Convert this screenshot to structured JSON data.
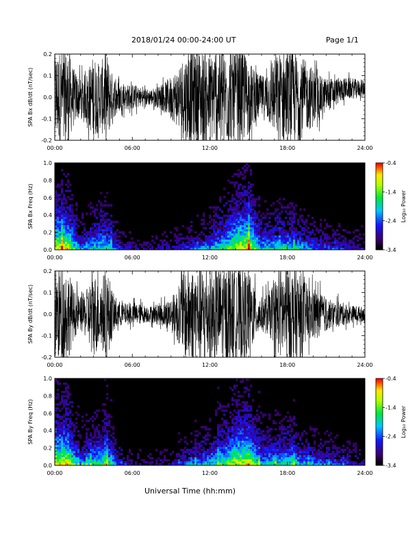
{
  "header": {
    "title": "2018/01/24  00:00-24:00 UT",
    "page": "Page 1/1"
  },
  "x_caption": "Universal Time (hh:mm)",
  "colorbar": {
    "label": "Log₁₀ Power",
    "ticks": [
      "-0.4",
      "-1.4",
      "-2.4",
      "-3.4"
    ],
    "range": [
      -3.4,
      -0.4
    ]
  },
  "chart_data": [
    {
      "type": "line",
      "ylabel": "SPA Bx dB/dt (nT/sec)",
      "xlim": [
        0,
        24
      ],
      "ylim": [
        -0.2,
        0.2
      ],
      "xticks": [
        "00:00",
        "06:00",
        "12:00",
        "18:00",
        "24:00"
      ],
      "yticks": [
        "-0.2",
        "-0.1",
        "0.0",
        "0.1",
        "0.2"
      ],
      "envelope": {
        "hours": [
          0,
          0.5,
          1,
          1.5,
          2,
          2.5,
          3,
          3.5,
          4,
          4.5,
          5,
          5.5,
          6,
          6.5,
          7,
          7.5,
          8,
          8.5,
          9,
          9.5,
          10,
          10.5,
          11,
          11.5,
          12,
          12.5,
          13,
          13.5,
          14,
          14.5,
          15,
          15.5,
          16,
          16.5,
          17,
          17.5,
          18,
          18.5,
          19,
          19.5,
          20,
          20.5,
          21,
          21.5,
          22,
          22.5,
          23,
          23.5,
          24
        ],
        "amplitude": [
          0.22,
          0.22,
          0.22,
          0.13,
          0.09,
          0.12,
          0.2,
          0.15,
          0.22,
          0.1,
          0.07,
          0.06,
          0.06,
          0.05,
          0.04,
          0.04,
          0.05,
          0.07,
          0.1,
          0.14,
          0.2,
          0.22,
          0.22,
          0.22,
          0.2,
          0.22,
          0.22,
          0.22,
          0.22,
          0.22,
          0.18,
          0.12,
          0.1,
          0.12,
          0.18,
          0.22,
          0.22,
          0.22,
          0.2,
          0.16,
          0.14,
          0.1,
          0.08,
          0.07,
          0.06,
          0.05,
          0.05,
          0.04,
          0.04
        ],
        "offset": [
          0,
          0,
          0,
          0,
          0,
          0,
          0,
          0,
          0,
          0,
          0,
          0,
          0,
          0,
          0,
          0,
          0,
          0,
          0,
          0,
          0,
          0,
          0,
          0,
          0,
          0,
          0,
          0,
          0,
          0,
          0,
          0,
          0,
          0,
          0,
          0,
          0,
          0,
          0,
          0,
          0,
          0,
          0.01,
          0.02,
          0.03,
          0.04,
          0.04,
          0.04,
          0.04
        ]
      }
    },
    {
      "type": "heatmap",
      "ylabel": "SPA Bx Freq (Hz)",
      "xlim": [
        0,
        24
      ],
      "ylim": [
        0,
        1
      ],
      "xticks": [
        "00:00",
        "06:00",
        "12:00",
        "18:00",
        "24:00"
      ],
      "yticks": [
        "0.0",
        "0.2",
        "0.4",
        "0.6",
        "0.8",
        "1.0"
      ],
      "activity": {
        "hours": [
          0,
          1,
          2,
          3,
          4,
          5,
          6,
          7,
          8,
          9,
          10,
          11,
          12,
          13,
          14,
          15,
          16,
          17,
          18,
          19,
          20,
          21,
          22,
          23,
          24
        ],
        "level": [
          0.85,
          0.9,
          0.4,
          0.55,
          0.6,
          0.3,
          0.2,
          0.15,
          0.15,
          0.2,
          0.3,
          0.4,
          0.5,
          0.6,
          0.8,
          0.9,
          0.5,
          0.55,
          0.6,
          0.5,
          0.4,
          0.35,
          0.3,
          0.25,
          0.2
        ],
        "reach_hz": [
          0.95,
          0.9,
          0.4,
          0.6,
          0.7,
          0.3,
          0.15,
          0.15,
          0.2,
          0.25,
          0.3,
          0.35,
          0.5,
          0.7,
          0.95,
          1.0,
          0.6,
          0.55,
          0.6,
          0.5,
          0.4,
          0.35,
          0.3,
          0.25,
          0.2
        ]
      },
      "value_range": [
        -3.4,
        -0.4
      ]
    },
    {
      "type": "line",
      "ylabel": "SPA By dB/dt (nT/sec)",
      "xlim": [
        0,
        24
      ],
      "ylim": [
        -0.2,
        0.2
      ],
      "xticks": [
        "00:00",
        "06:00",
        "12:00",
        "18:00",
        "24:00"
      ],
      "yticks": [
        "-0.2",
        "-0.1",
        "0.0",
        "0.1",
        "0.2"
      ],
      "envelope": {
        "hours": [
          0,
          0.5,
          1,
          1.5,
          2,
          2.5,
          3,
          3.5,
          4,
          4.5,
          5,
          5.5,
          6,
          6.5,
          7,
          7.5,
          8,
          8.5,
          9,
          9.5,
          10,
          10.5,
          11,
          11.5,
          12,
          12.5,
          13,
          13.5,
          14,
          14.5,
          15,
          15.5,
          16,
          16.5,
          17,
          17.5,
          18,
          18.5,
          19,
          19.5,
          20,
          20.5,
          21,
          21.5,
          22,
          22.5,
          23,
          23.5,
          24
        ],
        "amplitude": [
          0.22,
          0.22,
          0.22,
          0.11,
          0.08,
          0.12,
          0.2,
          0.16,
          0.22,
          0.1,
          0.06,
          0.05,
          0.05,
          0.05,
          0.04,
          0.04,
          0.05,
          0.06,
          0.08,
          0.12,
          0.2,
          0.22,
          0.22,
          0.22,
          0.22,
          0.22,
          0.22,
          0.22,
          0.22,
          0.22,
          0.2,
          0.12,
          0.08,
          0.1,
          0.14,
          0.22,
          0.22,
          0.22,
          0.2,
          0.14,
          0.12,
          0.1,
          0.08,
          0.06,
          0.06,
          0.05,
          0.04,
          0.04,
          0.03
        ],
        "offset": [
          0,
          0,
          0,
          0,
          0,
          0,
          0,
          0,
          0,
          0,
          0,
          0,
          0,
          0,
          0,
          0,
          0,
          0,
          0,
          0,
          0,
          0,
          0,
          0,
          0,
          0,
          0,
          0,
          0,
          0,
          0,
          0,
          0,
          0,
          0,
          0,
          0,
          0,
          0,
          0,
          0,
          0,
          0,
          0,
          0,
          0,
          0,
          0,
          0
        ]
      }
    },
    {
      "type": "heatmap",
      "ylabel": "SPA By Freq (Hz)",
      "xlim": [
        0,
        24
      ],
      "ylim": [
        0,
        1
      ],
      "xticks": [
        "00:00",
        "06:00",
        "12:00",
        "18:00",
        "24:00"
      ],
      "yticks": [
        "0.0",
        "0.2",
        "0.4",
        "0.6",
        "0.8",
        "1.0"
      ],
      "activity": {
        "hours": [
          0,
          1,
          2,
          3,
          4,
          5,
          6,
          7,
          8,
          9,
          10,
          11,
          12,
          13,
          14,
          15,
          16,
          17,
          18,
          19,
          20,
          21,
          22,
          23,
          24
        ],
        "level": [
          0.85,
          0.9,
          0.45,
          0.6,
          0.65,
          0.35,
          0.2,
          0.15,
          0.15,
          0.2,
          0.35,
          0.45,
          0.55,
          0.65,
          0.8,
          0.9,
          0.5,
          0.55,
          0.6,
          0.5,
          0.45,
          0.4,
          0.35,
          0.3,
          0.2
        ],
        "reach_hz": [
          1.0,
          0.95,
          0.45,
          0.65,
          0.75,
          0.3,
          0.15,
          0.15,
          0.2,
          0.25,
          0.35,
          0.4,
          0.55,
          0.75,
          1.0,
          1.0,
          0.6,
          0.6,
          0.65,
          0.5,
          0.45,
          0.4,
          0.35,
          0.3,
          0.2
        ]
      },
      "value_range": [
        -3.4,
        -0.4
      ]
    }
  ]
}
